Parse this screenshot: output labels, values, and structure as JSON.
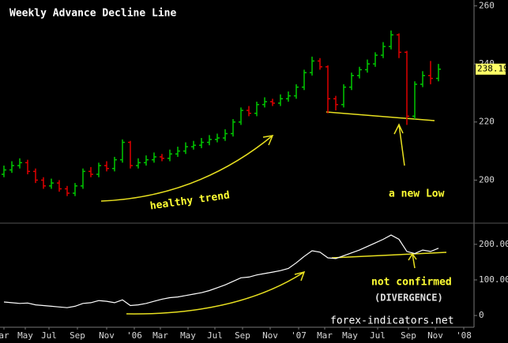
{
  "chart_data": [
    {
      "type": "ohlc",
      "title": "Weekly Advance Decline Line",
      "annotations": [
        "healthy trend",
        "a new Low"
      ],
      "up_color": "#00c800",
      "down_color": "#e00000",
      "xlim": [
        0,
        60
      ],
      "ylim": [
        186,
        262
      ],
      "yticks": [
        200,
        220,
        240,
        260
      ],
      "open": [
        202,
        203.5,
        205,
        206,
        203,
        200,
        198,
        199,
        197,
        195.5,
        198,
        203,
        202,
        205,
        204,
        207,
        213,
        205,
        206,
        207,
        208,
        207.5,
        209,
        210,
        211.5,
        212,
        213,
        214,
        214.5,
        216,
        220,
        224,
        223,
        226,
        227,
        226.5,
        228,
        229,
        232,
        237,
        241,
        239,
        228,
        226,
        232,
        236,
        238,
        240,
        243,
        246,
        250,
        244,
        222,
        233,
        236,
        235
      ],
      "high": [
        205,
        206.5,
        207.5,
        207,
        204,
        201,
        200.5,
        200,
        198,
        199,
        204,
        204.5,
        206,
        206.5,
        208,
        214,
        213.5,
        207.5,
        208.5,
        209.5,
        209,
        210.5,
        211.5,
        213,
        213.5,
        214.5,
        215.5,
        216,
        217.5,
        221,
        225,
        225.5,
        227,
        228.5,
        228,
        229.5,
        230.5,
        233,
        238,
        242.5,
        242,
        239.5,
        229,
        233,
        237,
        239,
        241.5,
        244,
        247.5,
        251.5,
        250.5,
        244.5,
        234,
        237.5,
        241,
        240
      ],
      "low": [
        201,
        202.5,
        204,
        202,
        199,
        197,
        197,
        196,
        194.5,
        194.5,
        197,
        201,
        201,
        203,
        203,
        206,
        204,
        204,
        205,
        206,
        206.5,
        206.5,
        208,
        209,
        210.5,
        211,
        212,
        213,
        213.5,
        215,
        219,
        222,
        222,
        225,
        225.5,
        225.5,
        227,
        228,
        231,
        236,
        238,
        223,
        224,
        225,
        231,
        235,
        237,
        239,
        242,
        245,
        242,
        219,
        221,
        232,
        233,
        234
      ],
      "close": [
        203.5,
        205,
        206,
        203,
        200,
        198,
        199,
        197,
        195.5,
        198,
        203,
        202,
        205,
        204,
        207,
        213,
        205,
        206,
        207,
        208,
        207.5,
        209,
        210,
        211.5,
        212,
        213,
        214,
        214.5,
        216,
        220,
        224,
        223,
        226,
        227,
        226.5,
        228,
        229,
        232,
        237,
        241,
        239,
        228,
        226,
        232,
        236,
        238,
        240,
        243,
        246,
        250,
        244,
        222,
        233,
        236,
        235,
        238.19
      ]
    },
    {
      "type": "line",
      "annotations": [
        "not confirmed",
        "(DIVERGENCE)"
      ],
      "source": "forex-indicators.net",
      "color": "#ffffff",
      "xlim": [
        0,
        60
      ],
      "ylim": [
        -33000,
        244000
      ],
      "yticks": [
        {
          "value": 200000,
          "label": "200.000"
        },
        {
          "value": 100000,
          "label": "100.000"
        },
        0
      ],
      "xticks": [
        {
          "value": 0.5,
          "label": "ar"
        },
        {
          "value": 3.2,
          "label": "May"
        },
        {
          "value": 6.2,
          "label": "Jul"
        },
        {
          "value": 9.8,
          "label": "Sep"
        },
        {
          "value": 13.5,
          "label": "Nov"
        },
        {
          "value": 17.0,
          "label": "'06"
        },
        {
          "value": 20.3,
          "label": "Mar"
        },
        {
          "value": 23.8,
          "label": "May"
        },
        {
          "value": 27.2,
          "label": "Jul"
        },
        {
          "value": 30.7,
          "label": "Sep"
        },
        {
          "value": 34.2,
          "label": "Nov"
        },
        {
          "value": 37.8,
          "label": "'07"
        },
        {
          "value": 41.1,
          "label": "Mar"
        },
        {
          "value": 44.3,
          "label": "May"
        },
        {
          "value": 47.8,
          "label": "Jul"
        },
        {
          "value": 51.7,
          "label": "Sep"
        },
        {
          "value": 55.1,
          "label": "Nov"
        },
        {
          "value": 58.7,
          "label": "'08"
        }
      ],
      "values": [
        38000,
        36000,
        34000,
        35000,
        30000,
        28000,
        26000,
        24000,
        22000,
        26000,
        34000,
        36000,
        42000,
        40000,
        36000,
        44000,
        28000,
        30000,
        34000,
        40000,
        46000,
        50000,
        52000,
        56000,
        60000,
        64000,
        70000,
        78000,
        86000,
        96000,
        106000,
        108000,
        114000,
        118000,
        122000,
        126000,
        132000,
        148000,
        166000,
        182000,
        178000,
        162000,
        160000,
        168000,
        176000,
        184000,
        194000,
        204000,
        214000,
        226000,
        214000,
        180000,
        174000,
        184000,
        180000,
        189000
      ]
    }
  ]
}
